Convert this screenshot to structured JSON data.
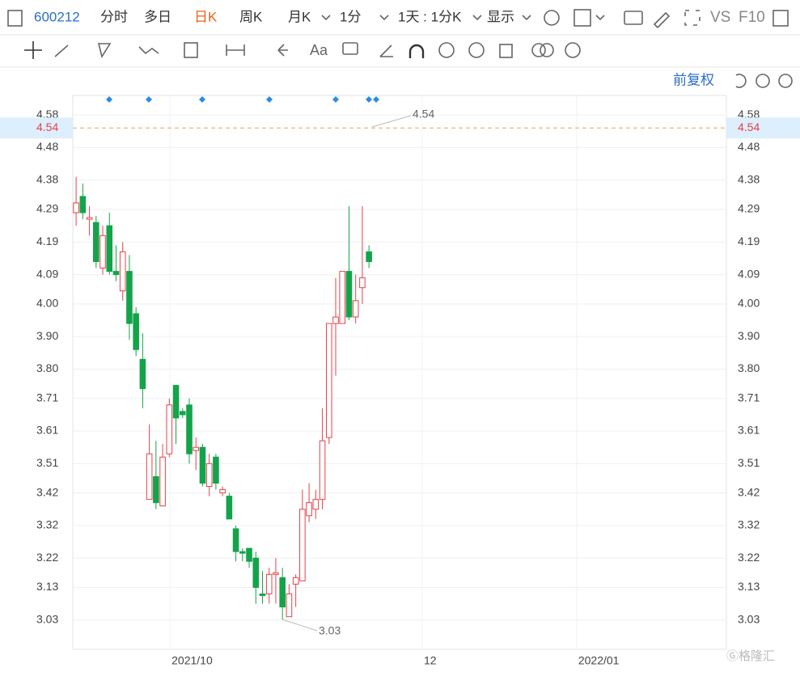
{
  "toolbar": {
    "code": "600212",
    "items": [
      "分时",
      "多日",
      "日K",
      "周K",
      "月K",
      "1分",
      "1天 : 1分K",
      "显示"
    ],
    "right": [
      "VS",
      "F10"
    ],
    "font_tool": "Aa",
    "adjust": "前复权",
    "watermark": "格隆汇"
  },
  "chart_data": {
    "type": "candlestick",
    "categories": [
      null,
      null,
      null,
      null,
      null,
      null,
      null,
      null,
      null,
      null,
      null,
      null,
      null,
      null,
      null,
      null,
      null,
      null,
      null,
      null,
      null,
      null,
      null,
      null,
      null,
      null,
      null,
      null,
      null,
      null,
      null,
      null,
      null,
      null,
      null,
      null,
      null,
      null,
      null,
      null,
      null,
      null,
      null,
      null,
      null
    ],
    "open": [
      4.28,
      4.33,
      4.26,
      4.25,
      4.11,
      4.24,
      4.1,
      4.04,
      4.1,
      3.97,
      3.83,
      3.4,
      3.47,
      3.38,
      3.54,
      3.75,
      3.67,
      3.69,
      3.55,
      3.56,
      3.44,
      3.53,
      3.42,
      3.41,
      3.31,
      3.24,
      3.25,
      3.22,
      3.11,
      3.11,
      3.17,
      3.16,
      3.04,
      3.14,
      3.15,
      3.35,
      3.37,
      3.4,
      3.59,
      3.94,
      3.94,
      4.1,
      3.96,
      4.05,
      4.16
    ],
    "high": [
      4.39,
      4.37,
      4.3,
      4.27,
      4.24,
      4.28,
      4.18,
      4.19,
      4.15,
      3.99,
      3.91,
      3.63,
      3.58,
      3.57,
      3.71,
      3.75,
      3.68,
      3.71,
      3.59,
      3.57,
      3.54,
      3.54,
      3.44,
      3.42,
      3.32,
      3.25,
      3.25,
      3.24,
      3.18,
      3.19,
      3.22,
      3.19,
      3.14,
      3.17,
      3.43,
      3.45,
      3.43,
      3.68,
      3.94,
      4.08,
      4.1,
      4.3,
      4.09,
      4.3,
      4.18
    ],
    "low": [
      4.24,
      4.26,
      4.21,
      4.11,
      4.09,
      4.09,
      4.07,
      4.01,
      3.89,
      3.84,
      3.68,
      3.4,
      3.37,
      3.38,
      3.53,
      3.57,
      3.65,
      3.51,
      3.49,
      3.44,
      3.41,
      3.43,
      3.41,
      3.34,
      3.21,
      3.21,
      3.19,
      3.08,
      3.08,
      3.08,
      3.08,
      3.03,
      3.04,
      3.07,
      3.15,
      3.33,
      3.34,
      3.37,
      3.57,
      3.78,
      3.94,
      3.95,
      3.94,
      4.0,
      4.11
    ],
    "close": [
      4.31,
      4.28,
      4.265,
      4.13,
      4.21,
      4.1,
      4.09,
      4.16,
      3.94,
      3.86,
      3.74,
      3.54,
      3.39,
      3.53,
      3.69,
      3.65,
      3.66,
      3.54,
      3.56,
      3.45,
      3.51,
      3.45,
      3.43,
      3.34,
      3.24,
      3.235,
      3.21,
      3.13,
      3.105,
      3.17,
      3.175,
      3.07,
      3.11,
      3.16,
      3.37,
      3.39,
      3.4,
      3.58,
      3.94,
      3.96,
      4.1,
      3.96,
      4.01,
      4.08,
      4.13
    ],
    "up_color": "#e8414b",
    "down_color": "#13a44a",
    "xlim": [
      -0.5,
      97.7
    ],
    "xticks": [
      {
        "value": 14.1,
        "label": "2021/10"
      },
      {
        "value": 52.0,
        "label": "12"
      },
      {
        "value": 75.2,
        "label": "2022/01"
      }
    ],
    "ylim": [
      2.94,
      4.64
    ],
    "yticks": [
      4.58,
      4.48,
      4.38,
      4.29,
      4.19,
      4.09,
      {
        "value": 4,
        "label": "4.00"
      },
      {
        "value": 3.9,
        "label": "3.90"
      },
      {
        "value": 3.8,
        "label": "3.80"
      },
      3.71,
      3.61,
      3.51,
      3.42,
      3.32,
      3.22,
      3.13,
      3.03
    ],
    "grid": true,
    "last_price": 4.54,
    "annotations": [
      "4.54",
      "3.03"
    ]
  }
}
